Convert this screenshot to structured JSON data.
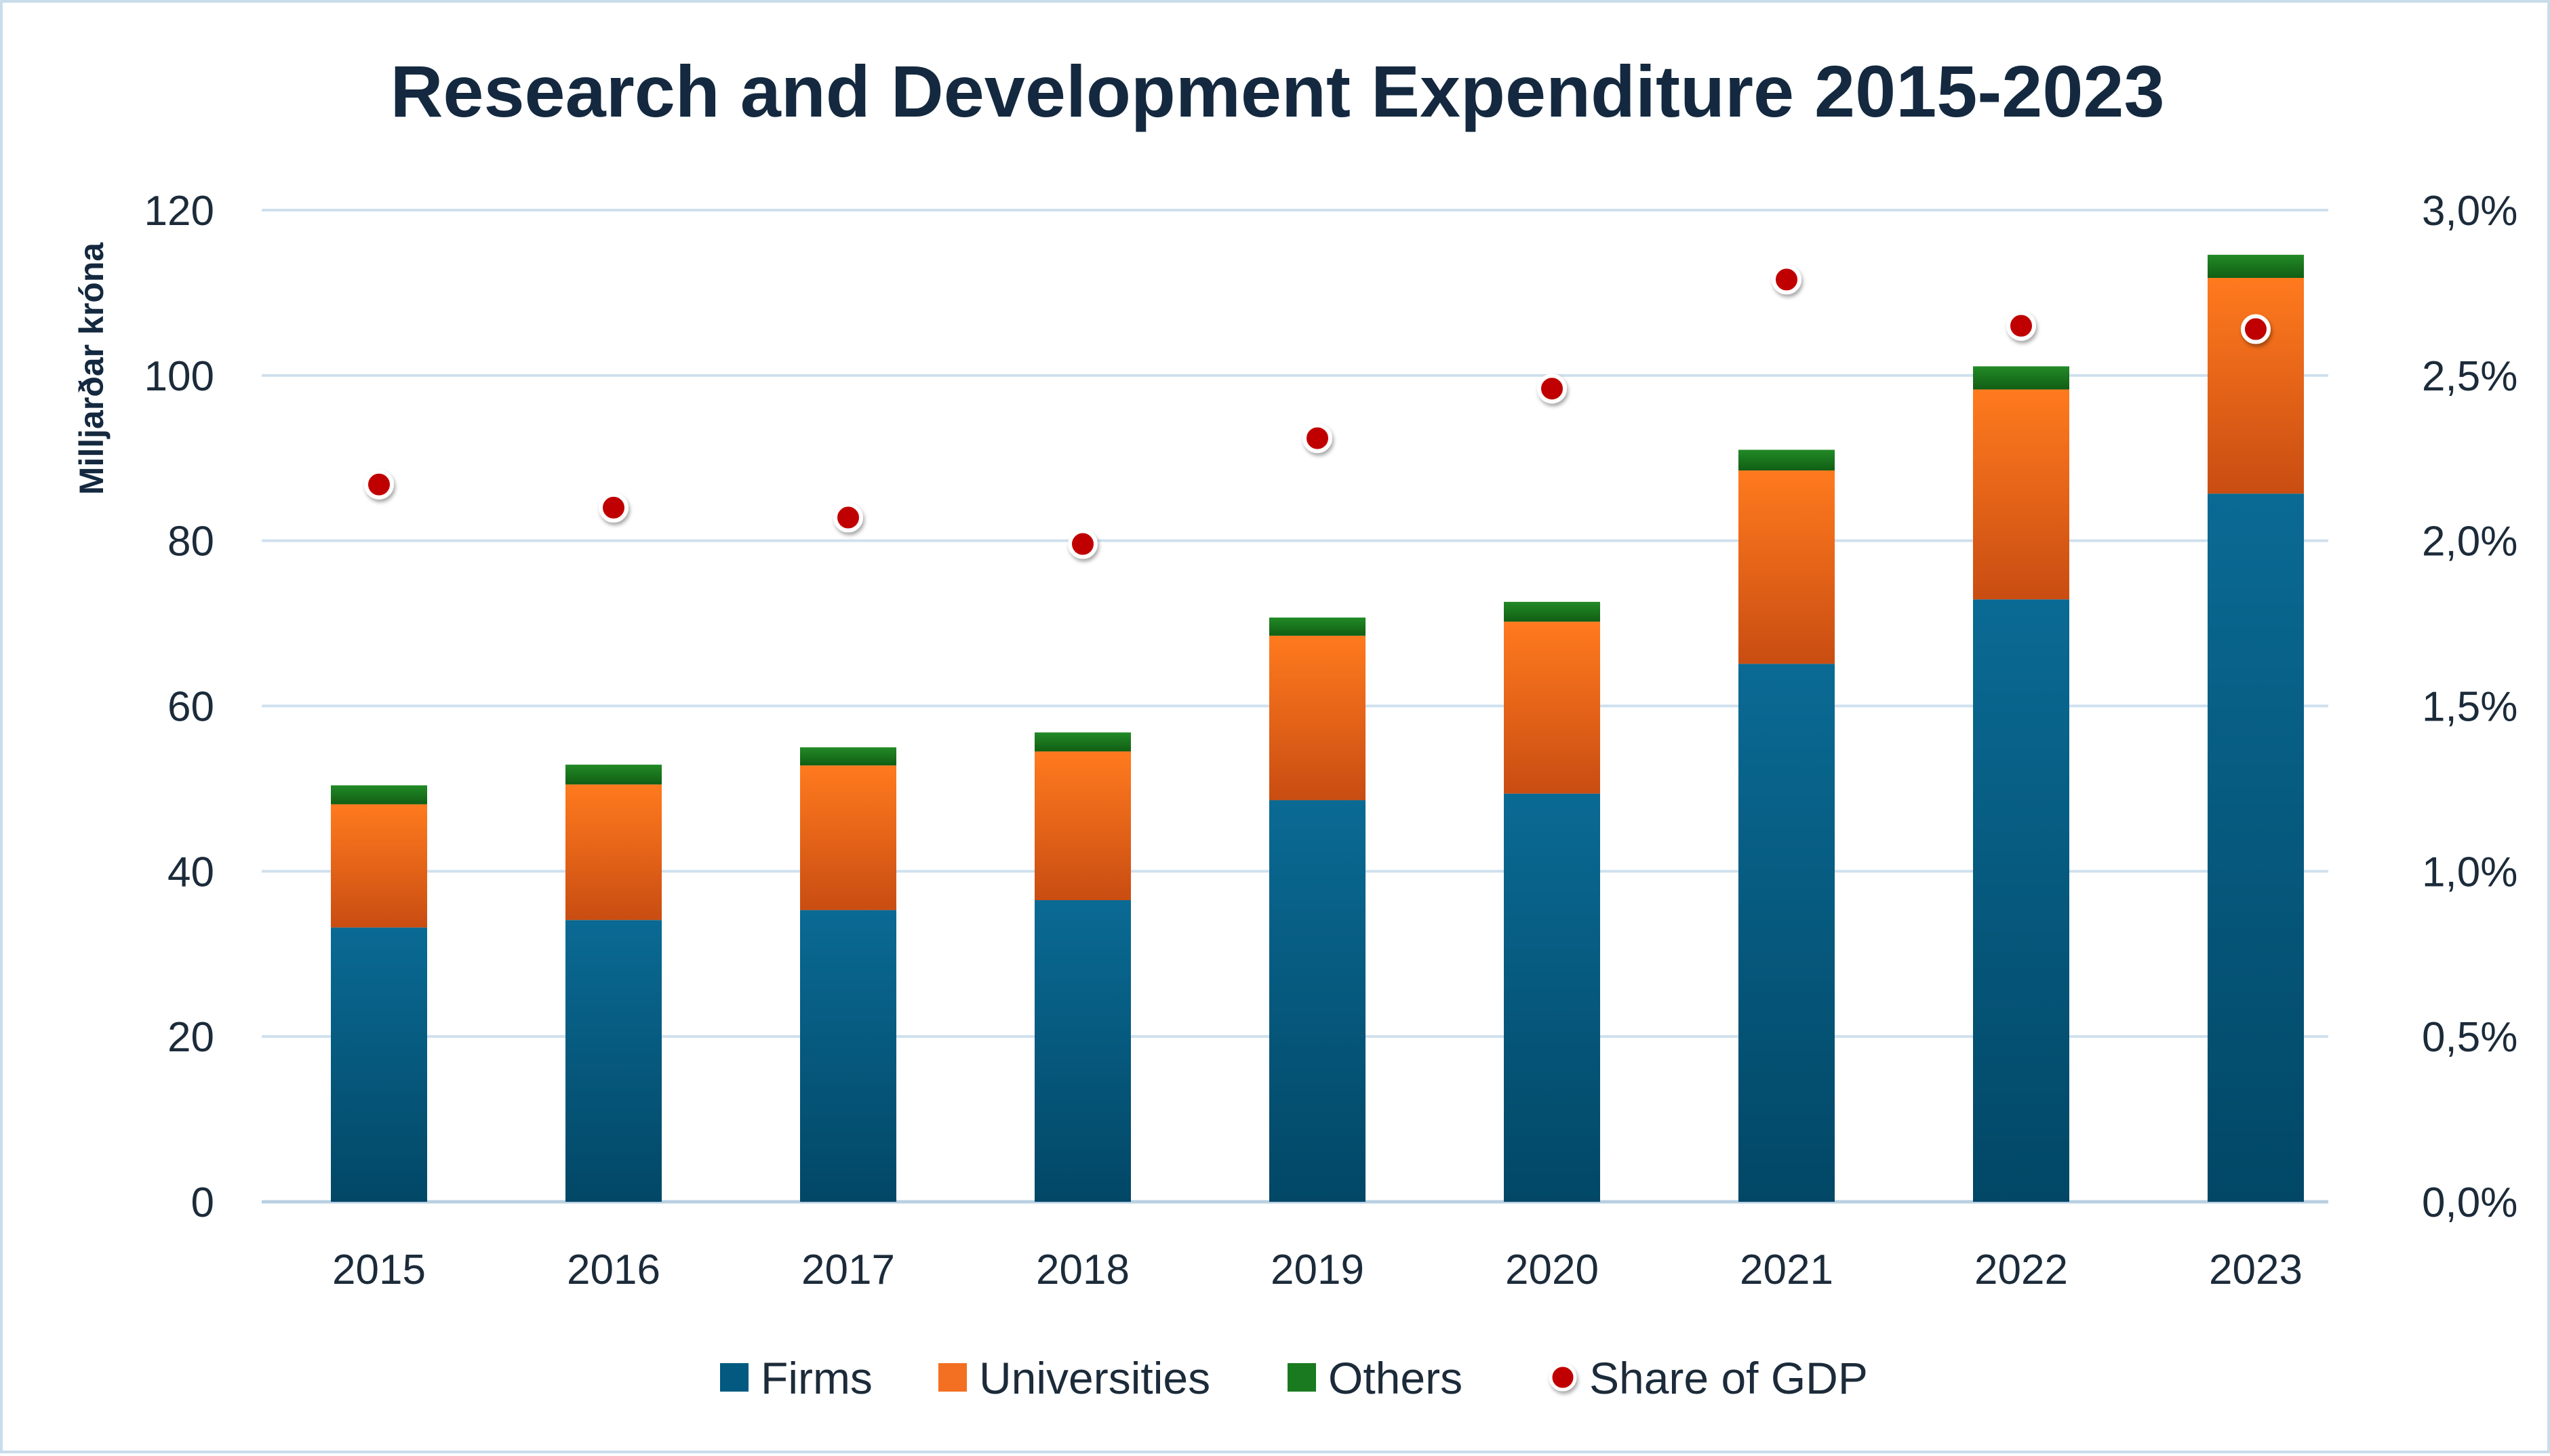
{
  "chart_data": {
    "type": "bar",
    "stacked": true,
    "title": "Research and Development Expenditure 2015-2023",
    "ylabel": "Milljarðar króna",
    "ylim": [
      0,
      120
    ],
    "yticks": [
      "0",
      "20",
      "40",
      "60",
      "80",
      "100",
      "120"
    ],
    "y2lim": [
      0,
      3.0
    ],
    "y2ticks": [
      "0,0%",
      "0,5%",
      "1,0%",
      "1,5%",
      "2,0%",
      "2,5%",
      "3,0%"
    ],
    "categories": [
      "2015",
      "2016",
      "2017",
      "2018",
      "2019",
      "2020",
      "2021",
      "2022",
      "2023"
    ],
    "series": [
      {
        "name": "Firms",
        "type": "bar",
        "color": "#035a80",
        "values": [
          33.2,
          34.1,
          35.3,
          36.5,
          48.6,
          49.4,
          65.1,
          72.9,
          85.7
        ]
      },
      {
        "name": "Universities",
        "type": "bar",
        "color": "#f36f21",
        "values": [
          14.9,
          16.4,
          17.5,
          18.0,
          19.9,
          20.8,
          23.4,
          25.4,
          26.1
        ]
      },
      {
        "name": "Others",
        "type": "bar",
        "color": "#1a7a1f",
        "values": [
          2.3,
          2.4,
          2.2,
          2.3,
          2.2,
          2.4,
          2.5,
          2.8,
          2.8
        ]
      },
      {
        "name": "Share of GDP",
        "type": "scatter",
        "axis": "right",
        "color": "#c00000",
        "values": [
          2.17,
          2.1,
          2.07,
          1.99,
          2.31,
          2.46,
          2.79,
          2.65,
          2.64
        ]
      }
    ],
    "grid": true,
    "legend": "bottom"
  }
}
